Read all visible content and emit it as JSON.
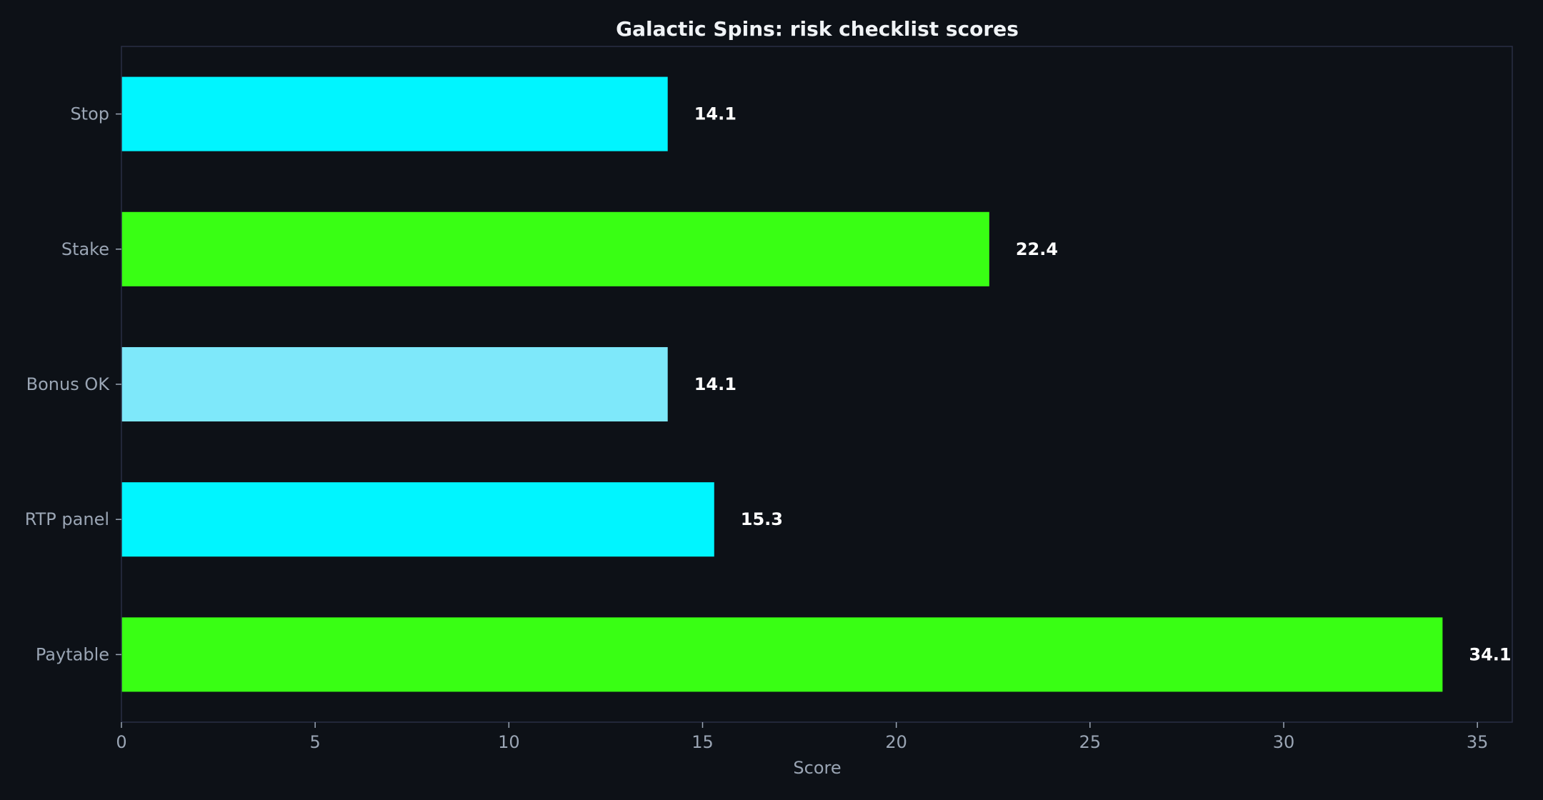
{
  "chart_data": {
    "type": "bar",
    "orientation": "horizontal",
    "title": "Galactic Spins: risk checklist scores",
    "xlabel": "Score",
    "ylabel": "",
    "categories": [
      "Stop",
      "Stake",
      "Bonus OK",
      "RTP panel",
      "Paytable"
    ],
    "values": [
      14.1,
      22.4,
      14.1,
      15.3,
      34.1
    ],
    "value_labels": [
      "14.1",
      "22.4",
      "14.1",
      "15.3",
      "34.1"
    ],
    "bar_colors": [
      "#00f5ff",
      "#39ff14",
      "#7ee8fa",
      "#00f5ff",
      "#39ff14"
    ],
    "xlim": [
      0,
      35.9
    ],
    "xticks": [
      0,
      5,
      10,
      15,
      20,
      25,
      30,
      35
    ],
    "xtick_labels": [
      "0",
      "5",
      "10",
      "15",
      "20",
      "25",
      "30",
      "35"
    ],
    "grid": false,
    "legend": "none"
  },
  "colors": {
    "background": "#0d1117",
    "axes_frame": "#2a2f45",
    "tick_text": "#9aa5b4",
    "title_text": "#f0f3f6",
    "value_text": "#ffffff"
  }
}
